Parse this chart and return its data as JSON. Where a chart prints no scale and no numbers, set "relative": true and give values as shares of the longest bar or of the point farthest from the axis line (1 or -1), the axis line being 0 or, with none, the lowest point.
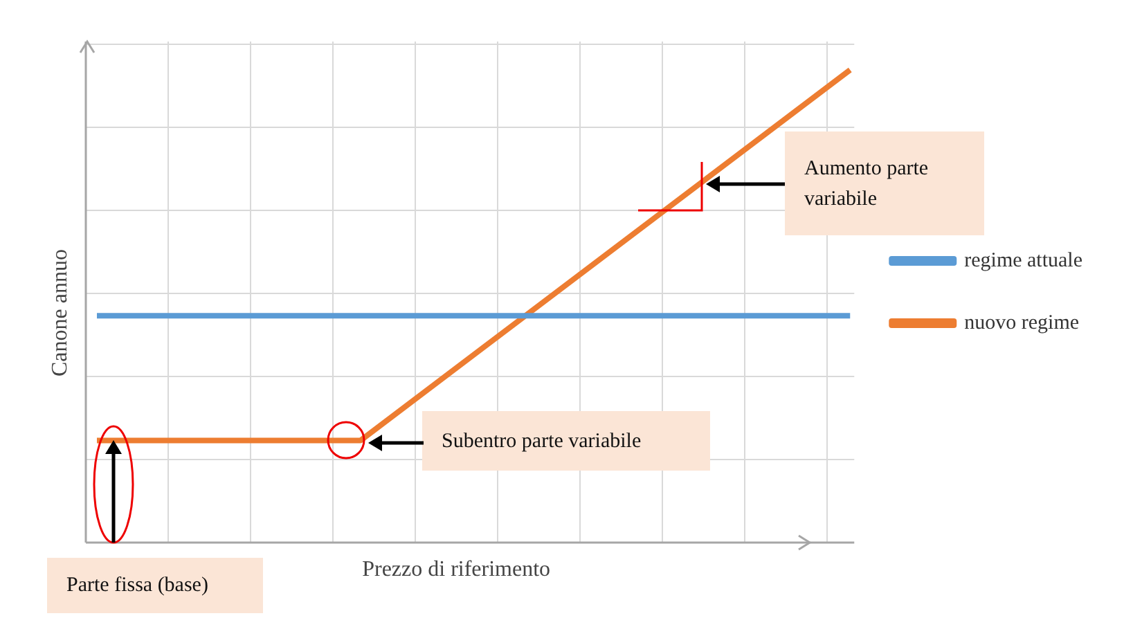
{
  "chart_data": {
    "type": "line",
    "relative": true,
    "xlabel": "Prezzo di riferimento",
    "ylabel": "Canone annuo",
    "categories": [
      null,
      null,
      null,
      null,
      null,
      null,
      null,
      null,
      null,
      null,
      null,
      null,
      null,
      null,
      null,
      null,
      null,
      null,
      null,
      null,
      null
    ],
    "series": [
      {
        "name": "regime attuale",
        "color": "#5b9bd5",
        "values": [
          0.48,
          null,
          null,
          null,
          null,
          null,
          null,
          null,
          null,
          null,
          null,
          null,
          null,
          null,
          null,
          null,
          null,
          null,
          null,
          null,
          0.48
        ]
      },
      {
        "name": "nuovo regime",
        "color": "#ed7d31",
        "values": [
          0.216,
          null,
          null,
          null,
          null,
          null,
          null,
          0.216,
          null,
          null,
          null,
          null,
          null,
          null,
          null,
          null,
          null,
          null,
          null,
          null,
          1
        ]
      }
    ],
    "annotations": [
      "Aumento parte variabile",
      "Subentro parte variabile",
      "Parte fissa (base)"
    ],
    "grid": true,
    "legend": "right",
    "marker": "none",
    "line_style": "solid"
  }
}
